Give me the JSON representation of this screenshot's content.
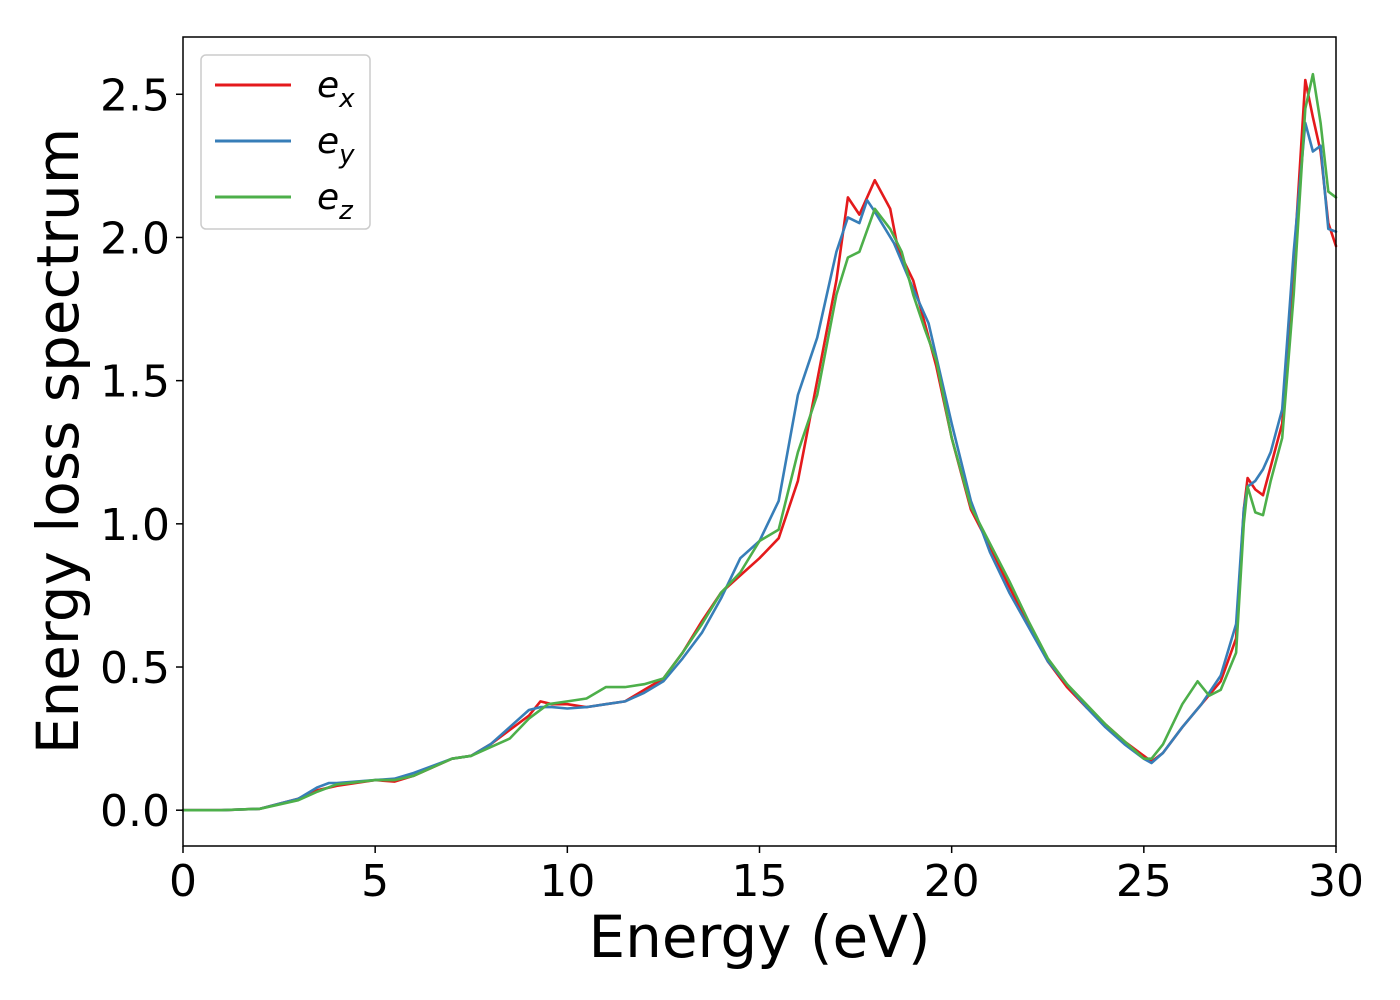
{
  "chart_data": {
    "type": "line",
    "xlabel": "Energy (eV)",
    "ylabel": "Energy loss spectrum",
    "xlim": [
      0,
      30
    ],
    "ylim": [
      -0.125,
      2.7
    ],
    "xticks": [
      0,
      5,
      10,
      15,
      20,
      25,
      30
    ],
    "xtick_labels": [
      "0",
      "5",
      "10",
      "15",
      "20",
      "25",
      "30"
    ],
    "yticks": [
      0.0,
      0.5,
      1.0,
      1.5,
      2.0,
      2.5
    ],
    "ytick_labels": [
      "0.0",
      "0.5",
      "1.0",
      "1.5",
      "2.0",
      "2.5"
    ],
    "grid": false,
    "legend_position": "top-left",
    "series": [
      {
        "name": "e_x",
        "legend_base": "e",
        "legend_sub": "x",
        "color": "#e41a1c",
        "points": [
          [
            0,
            0
          ],
          [
            1,
            0
          ],
          [
            2,
            0.005
          ],
          [
            3,
            0.04
          ],
          [
            3.5,
            0.07
          ],
          [
            4,
            0.085
          ],
          [
            5,
            0.105
          ],
          [
            5.5,
            0.1
          ],
          [
            6,
            0.12
          ],
          [
            7,
            0.18
          ],
          [
            7.5,
            0.19
          ],
          [
            8,
            0.23
          ],
          [
            8.5,
            0.28
          ],
          [
            9,
            0.33
          ],
          [
            9.3,
            0.38
          ],
          [
            9.6,
            0.37
          ],
          [
            10,
            0.37
          ],
          [
            10.5,
            0.36
          ],
          [
            11,
            0.37
          ],
          [
            11.5,
            0.38
          ],
          [
            12,
            0.42
          ],
          [
            12.5,
            0.46
          ],
          [
            13,
            0.55
          ],
          [
            13.5,
            0.66
          ],
          [
            14,
            0.76
          ],
          [
            14.5,
            0.82
          ],
          [
            15,
            0.88
          ],
          [
            15.5,
            0.95
          ],
          [
            16,
            1.15
          ],
          [
            16.5,
            1.5
          ],
          [
            17,
            1.85
          ],
          [
            17.3,
            2.14
          ],
          [
            17.6,
            2.08
          ],
          [
            18,
            2.2
          ],
          [
            18.4,
            2.1
          ],
          [
            18.6,
            1.96
          ],
          [
            19,
            1.85
          ],
          [
            19.3,
            1.7
          ],
          [
            19.6,
            1.55
          ],
          [
            20,
            1.3
          ],
          [
            20.5,
            1.05
          ],
          [
            21,
            0.92
          ],
          [
            21.5,
            0.78
          ],
          [
            22,
            0.65
          ],
          [
            22.5,
            0.52
          ],
          [
            23,
            0.43
          ],
          [
            23.5,
            0.36
          ],
          [
            24,
            0.3
          ],
          [
            24.5,
            0.24
          ],
          [
            25,
            0.19
          ],
          [
            25.2,
            0.17
          ],
          [
            25.5,
            0.2
          ],
          [
            26,
            0.29
          ],
          [
            26.5,
            0.37
          ],
          [
            27,
            0.45
          ],
          [
            27.4,
            0.6
          ],
          [
            27.6,
            1.05
          ],
          [
            27.7,
            1.16
          ],
          [
            27.9,
            1.12
          ],
          [
            28.1,
            1.1
          ],
          [
            28.3,
            1.2
          ],
          [
            28.6,
            1.35
          ],
          [
            28.9,
            1.9
          ],
          [
            29.2,
            2.55
          ],
          [
            29.4,
            2.42
          ],
          [
            29.6,
            2.3
          ],
          [
            29.8,
            2.05
          ],
          [
            30,
            1.97
          ]
        ]
      },
      {
        "name": "e_y",
        "legend_base": "e",
        "legend_sub": "y",
        "color": "#377eb8",
        "points": [
          [
            0,
            0
          ],
          [
            1,
            0
          ],
          [
            2,
            0.005
          ],
          [
            3,
            0.04
          ],
          [
            3.5,
            0.08
          ],
          [
            3.8,
            0.095
          ],
          [
            4,
            0.095
          ],
          [
            5,
            0.105
          ],
          [
            5.5,
            0.11
          ],
          [
            6,
            0.13
          ],
          [
            7,
            0.18
          ],
          [
            7.5,
            0.19
          ],
          [
            8,
            0.23
          ],
          [
            8.5,
            0.29
          ],
          [
            9,
            0.35
          ],
          [
            9.3,
            0.36
          ],
          [
            9.6,
            0.36
          ],
          [
            10,
            0.355
          ],
          [
            10.5,
            0.36
          ],
          [
            11,
            0.37
          ],
          [
            11.5,
            0.38
          ],
          [
            12,
            0.41
          ],
          [
            12.5,
            0.45
          ],
          [
            13,
            0.53
          ],
          [
            13.5,
            0.62
          ],
          [
            14,
            0.74
          ],
          [
            14.5,
            0.88
          ],
          [
            15,
            0.94
          ],
          [
            15.5,
            1.08
          ],
          [
            16,
            1.45
          ],
          [
            16.5,
            1.65
          ],
          [
            17,
            1.95
          ],
          [
            17.3,
            2.07
          ],
          [
            17.6,
            2.05
          ],
          [
            17.8,
            2.13
          ],
          [
            18,
            2.09
          ],
          [
            18.5,
            1.98
          ],
          [
            19,
            1.82
          ],
          [
            19.4,
            1.7
          ],
          [
            20,
            1.35
          ],
          [
            20.5,
            1.08
          ],
          [
            21,
            0.9
          ],
          [
            21.5,
            0.76
          ],
          [
            22,
            0.64
          ],
          [
            22.5,
            0.52
          ],
          [
            23,
            0.44
          ],
          [
            23.5,
            0.36
          ],
          [
            24,
            0.29
          ],
          [
            24.5,
            0.23
          ],
          [
            25,
            0.18
          ],
          [
            25.2,
            0.165
          ],
          [
            25.5,
            0.2
          ],
          [
            26,
            0.29
          ],
          [
            26.5,
            0.37
          ],
          [
            27,
            0.47
          ],
          [
            27.4,
            0.65
          ],
          [
            27.6,
            1.05
          ],
          [
            27.7,
            1.13
          ],
          [
            27.9,
            1.15
          ],
          [
            28.1,
            1.19
          ],
          [
            28.3,
            1.25
          ],
          [
            28.6,
            1.4
          ],
          [
            28.9,
            1.95
          ],
          [
            29.2,
            2.4
          ],
          [
            29.4,
            2.3
          ],
          [
            29.6,
            2.32
          ],
          [
            29.8,
            2.03
          ],
          [
            30,
            2.02
          ]
        ]
      },
      {
        "name": "e_z",
        "legend_base": "e",
        "legend_sub": "z",
        "color": "#4daf4a",
        "points": [
          [
            0,
            0
          ],
          [
            1,
            0
          ],
          [
            2,
            0.005
          ],
          [
            3,
            0.035
          ],
          [
            3.5,
            0.065
          ],
          [
            4,
            0.09
          ],
          [
            5,
            0.105
          ],
          [
            5.5,
            0.105
          ],
          [
            6,
            0.12
          ],
          [
            7,
            0.18
          ],
          [
            7.5,
            0.19
          ],
          [
            8,
            0.22
          ],
          [
            8.5,
            0.25
          ],
          [
            9,
            0.32
          ],
          [
            9.5,
            0.37
          ],
          [
            10,
            0.38
          ],
          [
            10.5,
            0.39
          ],
          [
            11,
            0.43
          ],
          [
            11.5,
            0.43
          ],
          [
            12,
            0.44
          ],
          [
            12.5,
            0.46
          ],
          [
            13,
            0.55
          ],
          [
            13.5,
            0.65
          ],
          [
            14,
            0.76
          ],
          [
            14.5,
            0.83
          ],
          [
            15,
            0.94
          ],
          [
            15.5,
            0.98
          ],
          [
            16,
            1.25
          ],
          [
            16.5,
            1.45
          ],
          [
            17,
            1.8
          ],
          [
            17.3,
            1.93
          ],
          [
            17.6,
            1.95
          ],
          [
            18,
            2.1
          ],
          [
            18.4,
            2.03
          ],
          [
            18.7,
            1.95
          ],
          [
            19,
            1.8
          ],
          [
            19.3,
            1.68
          ],
          [
            19.6,
            1.57
          ],
          [
            20,
            1.3
          ],
          [
            20.5,
            1.06
          ],
          [
            21,
            0.93
          ],
          [
            21.5,
            0.8
          ],
          [
            22,
            0.66
          ],
          [
            22.5,
            0.53
          ],
          [
            23,
            0.44
          ],
          [
            23.5,
            0.37
          ],
          [
            24,
            0.3
          ],
          [
            24.5,
            0.24
          ],
          [
            25,
            0.18
          ],
          [
            25.2,
            0.18
          ],
          [
            25.5,
            0.23
          ],
          [
            26,
            0.37
          ],
          [
            26.4,
            0.45
          ],
          [
            26.7,
            0.4
          ],
          [
            27,
            0.42
          ],
          [
            27.4,
            0.55
          ],
          [
            27.6,
            1.0
          ],
          [
            27.7,
            1.13
          ],
          [
            27.9,
            1.04
          ],
          [
            28.1,
            1.03
          ],
          [
            28.3,
            1.15
          ],
          [
            28.6,
            1.3
          ],
          [
            28.9,
            1.8
          ],
          [
            29.2,
            2.45
          ],
          [
            29.4,
            2.57
          ],
          [
            29.6,
            2.4
          ],
          [
            29.8,
            2.16
          ],
          [
            30,
            2.14
          ]
        ]
      }
    ]
  }
}
